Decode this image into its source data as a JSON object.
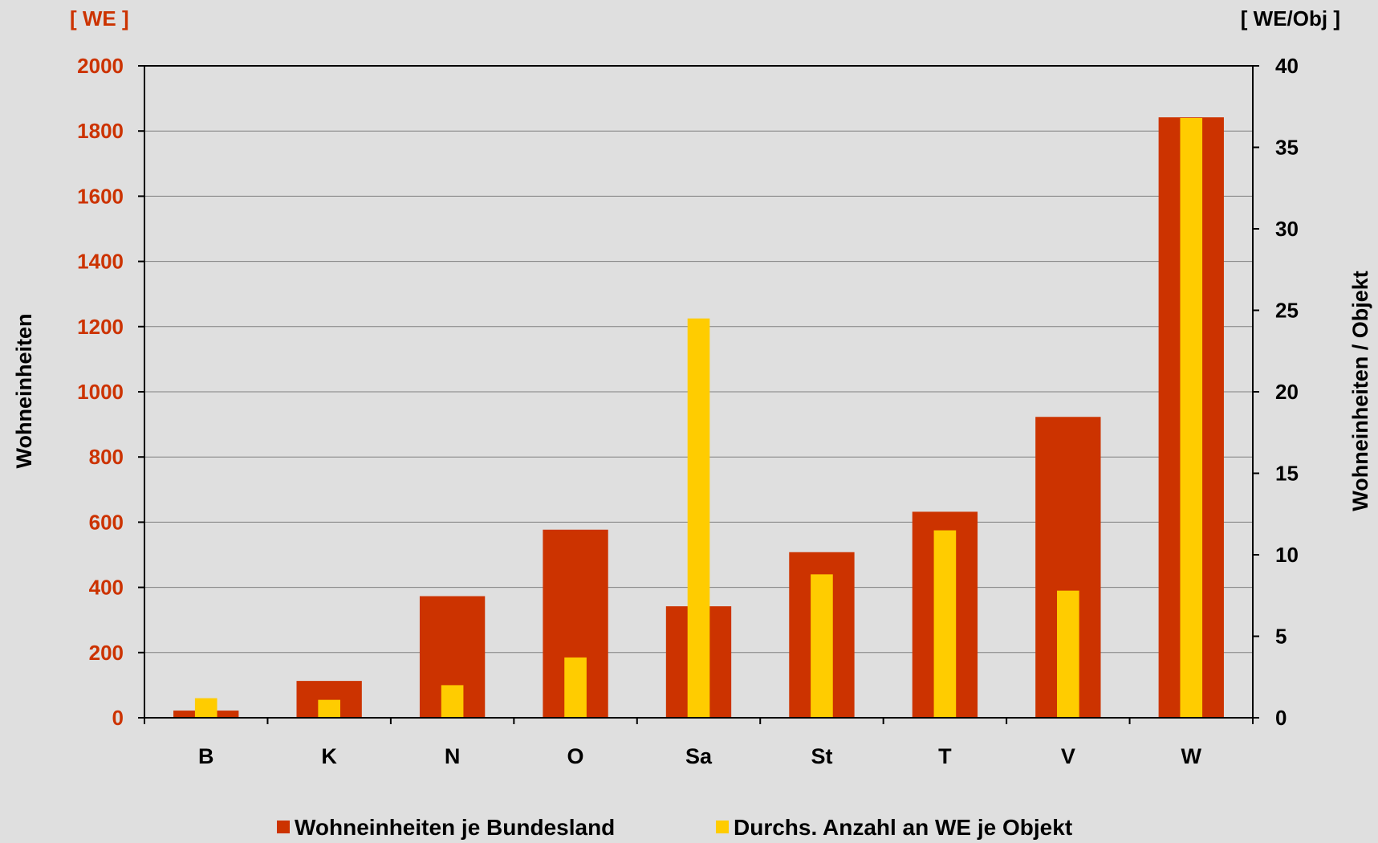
{
  "chart_data": {
    "type": "bar",
    "categories": [
      "B",
      "K",
      "N",
      "O",
      "Sa",
      "St",
      "T",
      "V",
      "W"
    ],
    "series": [
      {
        "name": "Wohneinheiten je Bundesland",
        "axis": "left",
        "color": "#cc3300",
        "values": [
          22,
          113,
          373,
          577,
          342,
          508,
          632,
          923,
          1842
        ]
      },
      {
        "name": "Durchs. Anzahl an WE je Objekt",
        "axis": "right",
        "color": "#ffcc00",
        "values": [
          1.2,
          1.1,
          2.0,
          3.7,
          24.5,
          8.8,
          11.5,
          7.8,
          36.8
        ]
      }
    ],
    "y_left": {
      "unit": "[ WE ]",
      "label": "Wohneinheiten",
      "range": [
        0,
        2000
      ],
      "ticks": [
        "0",
        "200",
        "400",
        "600",
        "800",
        "1000",
        "1200",
        "1400",
        "1600",
        "1800",
        "2000"
      ]
    },
    "y_right": {
      "unit": "[ WE/Obj ]",
      "label": "Wohneinheiten / Objekt",
      "range": [
        0,
        40
      ],
      "ticks": [
        "0",
        "5",
        "10",
        "15",
        "20",
        "25",
        "30",
        "35",
        "40"
      ]
    },
    "grid": true,
    "legend_position": "bottom",
    "colors": {
      "background": "#dfdfdf",
      "left_axis_text": "#cc3300",
      "right_axis_text": "#000000"
    }
  }
}
